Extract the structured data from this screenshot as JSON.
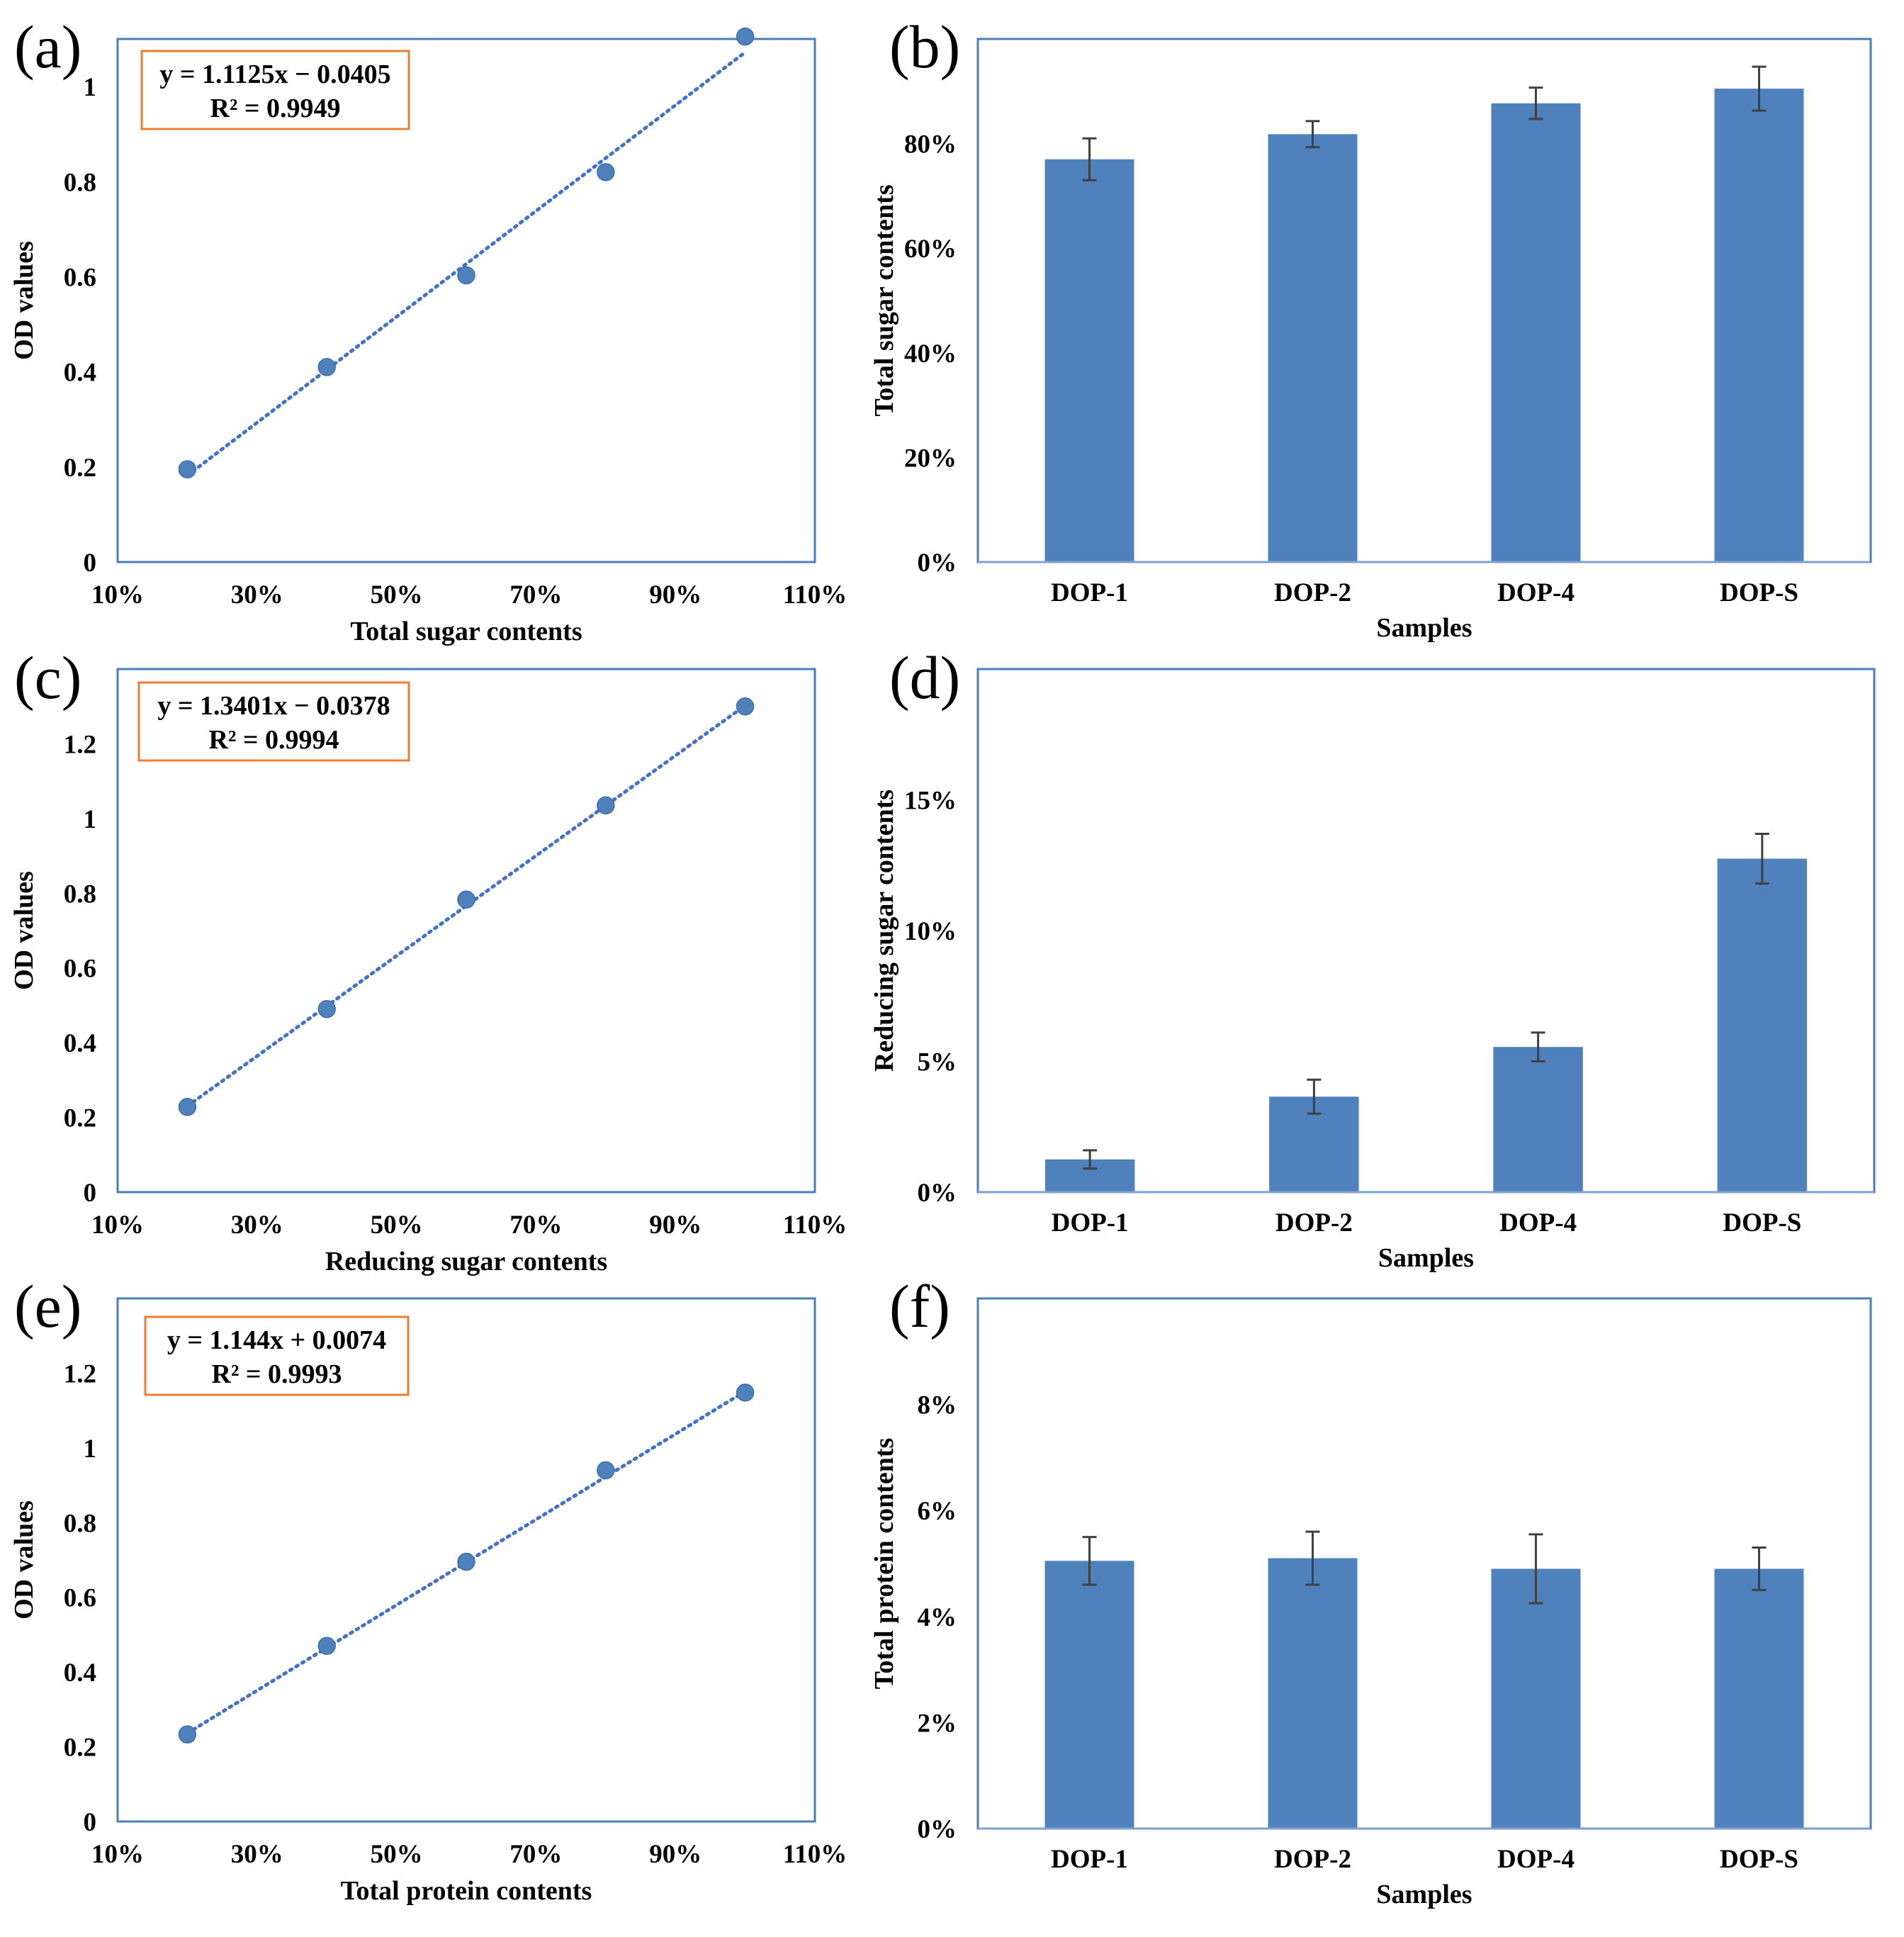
{
  "colors": {
    "plot_border": "#4a7ebb",
    "bar_fill": "#4f81bd",
    "marker": "#4f81bd",
    "trendline": "#4472c4",
    "equation_box": "#ed7d31",
    "error_bar": "#404040"
  },
  "chart_data": [
    {
      "id": "a",
      "panel_label": "(a)",
      "type": "scatter",
      "xlabel": "Total sugar contents",
      "ylabel": "OD  values",
      "xlim": [
        0.1,
        1.1
      ],
      "ylim": [
        0,
        1.1
      ],
      "x_ticks": [
        0.1,
        0.3,
        0.5,
        0.7,
        0.9,
        1.1
      ],
      "x_tick_labels": [
        "10%",
        "30%",
        "50%",
        "70%",
        "90%",
        "110%"
      ],
      "y_ticks": [
        0,
        0.2,
        0.4,
        0.6,
        0.8,
        1
      ],
      "y_tick_labels": [
        "0",
        "0.2",
        "0.4",
        "0.6",
        "0.8",
        "1"
      ],
      "x": [
        0.2,
        0.4,
        0.6,
        0.8,
        1.0
      ],
      "y": [
        0.195,
        0.41,
        0.603,
        0.82,
        1.105
      ],
      "trendline": {
        "slope": 1.1125,
        "intercept": -0.0405
      },
      "equation": "y = 1.1125x − 0.0405",
      "r2": "R² = 0.9949"
    },
    {
      "id": "b",
      "panel_label": "(b)",
      "type": "bar",
      "xlabel": "Samples",
      "ylabel": "Total sugar contents",
      "categories": [
        "DOP-1",
        "DOP-2",
        "DOP-4",
        "DOP-S"
      ],
      "values": [
        0.77,
        0.818,
        0.877,
        0.905
      ],
      "errors": [
        0.04,
        0.025,
        0.03,
        0.042
      ],
      "ylim": [
        0,
        1.0
      ],
      "y_ticks": [
        0,
        0.2,
        0.4,
        0.6,
        0.8
      ],
      "y_tick_labels": [
        "0%",
        "20%",
        "40%",
        "60%",
        "80%"
      ]
    },
    {
      "id": "c",
      "panel_label": "(c)",
      "type": "scatter",
      "xlabel": "Reducing sugar contents",
      "ylabel": "OD  values",
      "xlim": [
        0.1,
        1.1
      ],
      "ylim": [
        0,
        1.4
      ],
      "x_ticks": [
        0.1,
        0.3,
        0.5,
        0.7,
        0.9,
        1.1
      ],
      "x_tick_labels": [
        "10%",
        "30%",
        "50%",
        "70%",
        "90%",
        "110%"
      ],
      "y_ticks": [
        0,
        0.2,
        0.4,
        0.6,
        0.8,
        1,
        1.2
      ],
      "y_tick_labels": [
        "0",
        "0.2",
        "0.4",
        "0.6",
        "0.8",
        "1",
        "1.2"
      ],
      "x": [
        0.2,
        0.4,
        0.6,
        0.8,
        1.0
      ],
      "y": [
        0.228,
        0.49,
        0.783,
        1.035,
        1.3
      ],
      "trendline": {
        "slope": 1.3401,
        "intercept": -0.0378
      },
      "equation": "y = 1.3401x − 0.0378",
      "r2": "R² = 0.9994"
    },
    {
      "id": "d",
      "panel_label": "(d)",
      "type": "bar",
      "xlabel": "Samples",
      "ylabel": "Reducing sugar contents",
      "categories": [
        "DOP-1",
        "DOP-2",
        "DOP-4",
        "DOP-S"
      ],
      "values": [
        0.0125,
        0.0365,
        0.0555,
        0.1275
      ],
      "errors": [
        0.0035,
        0.0065,
        0.0055,
        0.0095
      ],
      "ylim": [
        0,
        0.2
      ],
      "y_ticks": [
        0,
        0.05,
        0.1,
        0.15
      ],
      "y_tick_labels": [
        "0%",
        "5%",
        "10%",
        "15%"
      ]
    },
    {
      "id": "e",
      "panel_label": "(e)",
      "type": "scatter",
      "xlabel": "Total protein contents",
      "ylabel": "OD  values",
      "xlim": [
        0.1,
        1.1
      ],
      "ylim": [
        0,
        1.4
      ],
      "x_ticks": [
        0.1,
        0.3,
        0.5,
        0.7,
        0.9,
        1.1
      ],
      "x_tick_labels": [
        "10%",
        "30%",
        "50%",
        "70%",
        "90%",
        "110%"
      ],
      "y_ticks": [
        0,
        0.2,
        0.4,
        0.6,
        0.8,
        1,
        1.2
      ],
      "y_tick_labels": [
        "0",
        "0.2",
        "0.4",
        "0.6",
        "0.8",
        "1",
        "1.2"
      ],
      "x": [
        0.2,
        0.4,
        0.6,
        0.8,
        1.0
      ],
      "y": [
        0.233,
        0.47,
        0.695,
        0.94,
        1.148
      ],
      "trendline": {
        "slope": 1.144,
        "intercept": 0.0074
      },
      "equation": "y = 1.144x + 0.0074",
      "r2": "R² = 0.9993"
    },
    {
      "id": "f",
      "panel_label": "(f)",
      "type": "bar",
      "xlabel": "Samples",
      "ylabel": "Total protein contents",
      "categories": [
        "DOP-1",
        "DOP-2",
        "DOP-4",
        "DOP-S"
      ],
      "values": [
        0.0505,
        0.051,
        0.049,
        0.049
      ],
      "errors": [
        0.0045,
        0.005,
        0.0065,
        0.004
      ],
      "ylim": [
        0,
        0.1
      ],
      "y_ticks": [
        0,
        0.02,
        0.04,
        0.06,
        0.08
      ],
      "y_tick_labels": [
        "0%",
        "2%",
        "4%",
        "6%",
        "8%"
      ]
    }
  ]
}
